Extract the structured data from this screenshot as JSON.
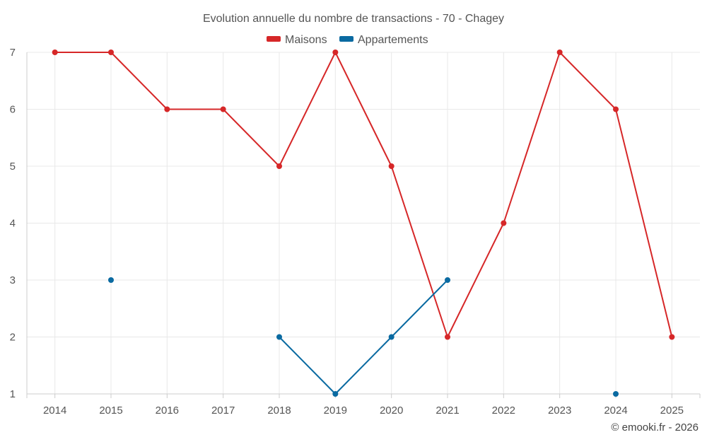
{
  "chart_data": {
    "type": "line",
    "title": "Evolution annuelle du nombre de transactions - 70 - Chagey",
    "categories": [
      "2014",
      "2015",
      "2016",
      "2017",
      "2018",
      "2019",
      "2020",
      "2021",
      "2022",
      "2023",
      "2024",
      "2025"
    ],
    "ylim": [
      1,
      7
    ],
    "yticks": [
      1,
      2,
      3,
      4,
      5,
      6,
      7
    ],
    "grid": true,
    "legend_position": "top-center",
    "series": [
      {
        "name": "Maisons",
        "color": "#d62728",
        "values": [
          7,
          7,
          6,
          6,
          5,
          7,
          5,
          2,
          4,
          7,
          6,
          2
        ]
      },
      {
        "name": "Appartements",
        "color": "#0a6aa1",
        "values": [
          null,
          3,
          null,
          null,
          2,
          1,
          2,
          3,
          null,
          null,
          1,
          null
        ]
      }
    ]
  },
  "credit": "© emooki.fr - 2026"
}
